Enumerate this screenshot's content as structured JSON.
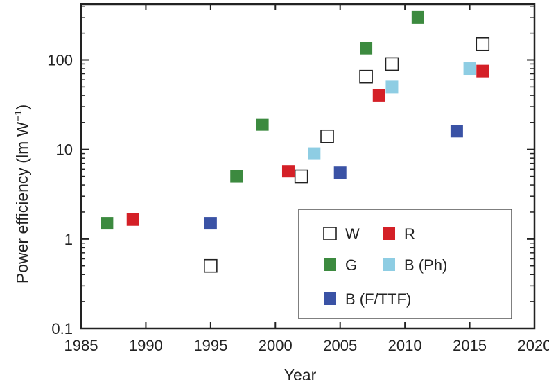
{
  "chart_data": {
    "type": "scatter",
    "xlabel": "Year",
    "ylabel": "Power efficiency (lm W",
    "ylabel_superscript": "−1",
    "ylabel_close": ")",
    "x_ticks": [
      "1985",
      "1990",
      "1995",
      "2000",
      "2005",
      "2010",
      "2015",
      "2020"
    ],
    "y_ticks": [
      "0.1",
      "1",
      "10",
      "100"
    ],
    "xlim": [
      1985,
      2020
    ],
    "ylim": [
      0.1,
      420
    ],
    "y_scale": "log",
    "grid": false,
    "legend_position": "bottom-right",
    "colors": {
      "W": "#ffffff",
      "R": "#d42027",
      "G": "#3c8a3f",
      "B (Ph)": "#8ecde3",
      "B (F/TTF)": "#3a52a5"
    },
    "legend": [
      "W",
      "R",
      "G",
      "B (Ph)",
      "B (F/TTF)"
    ],
    "series": [
      {
        "name": "W",
        "marker": "open-square",
        "x": [
          1995,
          2002,
          2004,
          2007,
          2009,
          2016
        ],
        "y": [
          0.5,
          5,
          14,
          65,
          90,
          150
        ]
      },
      {
        "name": "R",
        "marker": "filled-square",
        "x": [
          1989,
          2001,
          2008,
          2016
        ],
        "y": [
          1.65,
          5.7,
          40,
          75
        ]
      },
      {
        "name": "G",
        "marker": "filled-square",
        "x": [
          1987,
          1997,
          1999,
          2007,
          2011
        ],
        "y": [
          1.5,
          5,
          19,
          135,
          300
        ]
      },
      {
        "name": "B (Ph)",
        "marker": "filled-square",
        "x": [
          2003,
          2009,
          2015
        ],
        "y": [
          9,
          50,
          80
        ]
      },
      {
        "name": "B (F/TTF)",
        "marker": "filled-square",
        "x": [
          1995,
          2005,
          2014
        ],
        "y": [
          1.5,
          5.5,
          16
        ]
      }
    ]
  }
}
